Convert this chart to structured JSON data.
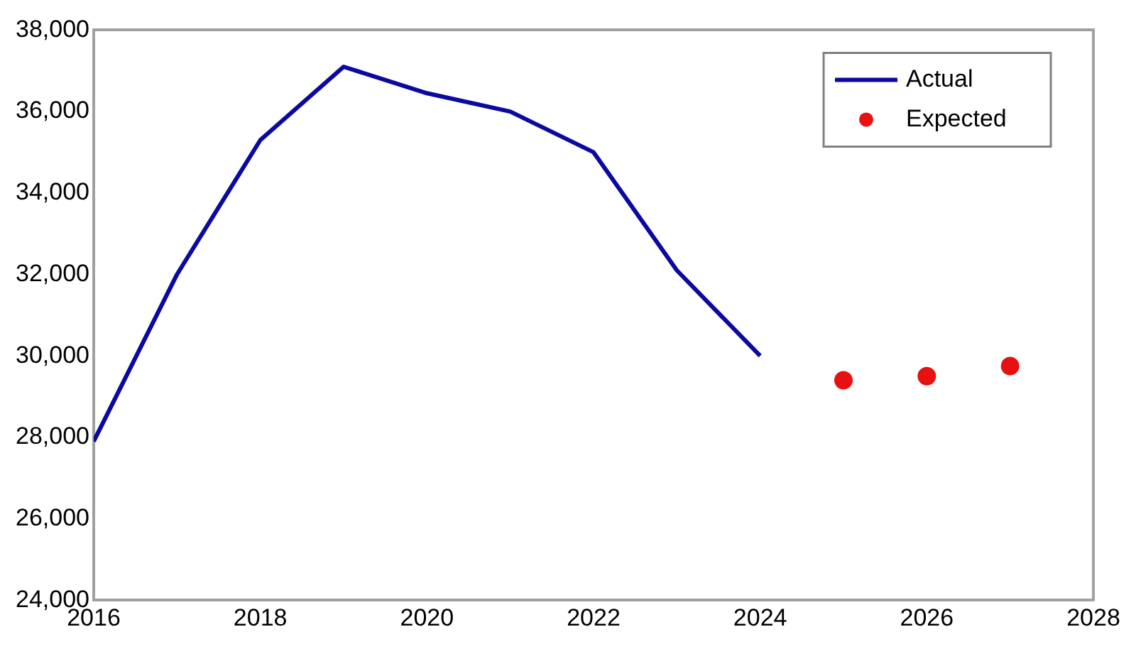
{
  "chart_data": {
    "type": "line",
    "x": [
      2016,
      2017,
      2018,
      2019,
      2020,
      2021,
      2022,
      2023,
      2024
    ],
    "series": [
      {
        "name": "Actual",
        "color": "#0a0aa0",
        "marker": "none",
        "values": [
          27900,
          32000,
          35300,
          37100,
          36450,
          36000,
          35000,
          32100,
          30000
        ]
      },
      {
        "name": "Expected",
        "type": "scatter",
        "color": "#e81010",
        "marker": "circle",
        "x": [
          2025,
          2026,
          2027
        ],
        "values": [
          29400,
          29500,
          29750
        ]
      }
    ],
    "xlim": [
      2016,
      2028
    ],
    "xticks": [
      2016,
      2018,
      2020,
      2022,
      2024,
      2026,
      2028
    ],
    "ylim": [
      24000,
      38000
    ],
    "yticks": [
      {
        "value": 24000,
        "label": "24,000"
      },
      {
        "value": 26000,
        "label": "26,000"
      },
      {
        "value": 28000,
        "label": "28,000"
      },
      {
        "value": 30000,
        "label": "30,000"
      },
      {
        "value": 32000,
        "label": "32,000"
      },
      {
        "value": 34000,
        "label": "34,000"
      },
      {
        "value": 36000,
        "label": "36,000"
      },
      {
        "value": 38000,
        "label": "38,000"
      }
    ],
    "grid": false,
    "legend": "top right"
  }
}
